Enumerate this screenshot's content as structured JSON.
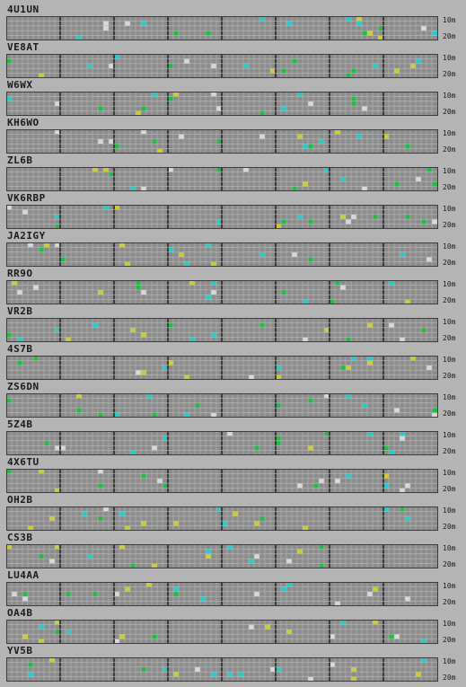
{
  "bands": {
    "top": "10m",
    "bottom": "20m"
  },
  "colors": {
    "grid_bg": "#8c8c8c",
    "grid_line": "#b8b8b8",
    "separator": "#3c3c3c",
    "spot_yellow": "#cccc33",
    "spot_green": "#22bb44",
    "spot_cyan": "#22cccc",
    "spot_lightgray": "#d8d8d8"
  },
  "beacons": [
    {
      "call": "4U1UN"
    },
    {
      "call": "VE8AT"
    },
    {
      "call": "W6WX"
    },
    {
      "call": "KH6WO"
    },
    {
      "call": "ZL6B"
    },
    {
      "call": "VK6RBP"
    },
    {
      "call": "JA2IGY"
    },
    {
      "call": "RR9O"
    },
    {
      "call": "VR2B"
    },
    {
      "call": "4S7B"
    },
    {
      "call": "ZS6DN"
    },
    {
      "call": "5Z4B"
    },
    {
      "call": "4X6TU"
    },
    {
      "call": "OH2B"
    },
    {
      "call": "CS3B"
    },
    {
      "call": "LU4AA"
    },
    {
      "call": "OA4B"
    },
    {
      "call": "YV5B"
    }
  ]
}
